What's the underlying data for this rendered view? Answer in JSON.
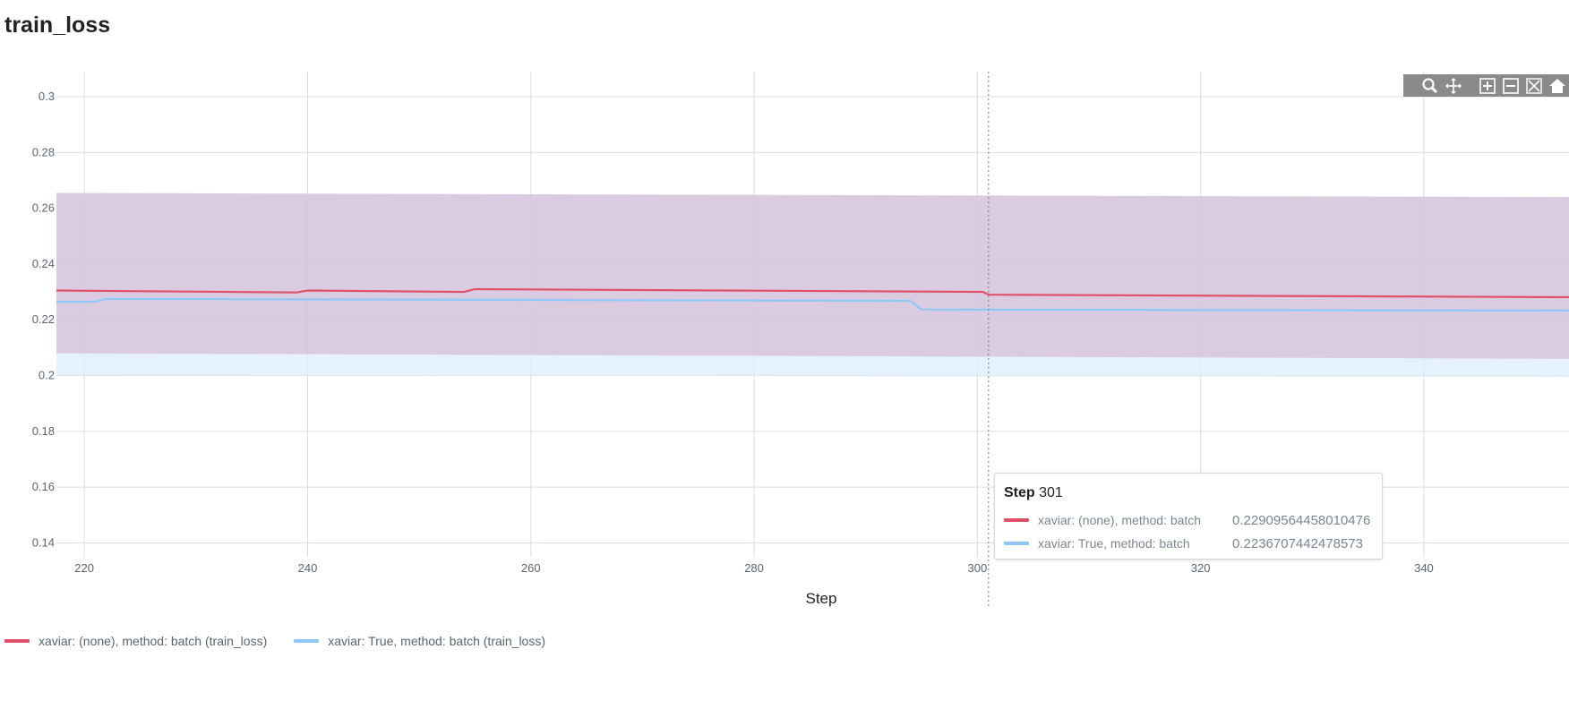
{
  "title": "train_loss",
  "colors": {
    "series_red": "#e05068",
    "series_blue": "#8ec8f8",
    "band_red": "#d8c0da",
    "band_blue": "#dceefb",
    "grid": "#d9dde3",
    "modebar_bg": "#8a8a8a"
  },
  "chart_data": {
    "type": "line",
    "xlabel": "Step",
    "ylabel": "",
    "xlim": [
      217.5,
      353
    ],
    "ylim": [
      0.135,
      0.309
    ],
    "xticks": [
      220,
      240,
      260,
      280,
      300,
      320,
      340
    ],
    "yticks": [
      0.14,
      0.16,
      0.18,
      0.2,
      0.22,
      0.24,
      0.26,
      0.28,
      0.3
    ],
    "ytick_labels": [
      "0.14",
      "0.16",
      "0.18",
      "0.2",
      "0.22",
      "0.24",
      "0.26",
      "0.28",
      "0.3"
    ],
    "grid": true,
    "legend_position": "bottom-left",
    "hover_step": 301,
    "series": [
      {
        "name": "xaviar: (none), method: batch (train_loss)",
        "short_name": "xaviar: (none), method: batch",
        "color": "#e05068",
        "x": [
          217.5,
          239,
          240,
          254,
          255,
          300.5,
          301,
          353
        ],
        "y": [
          0.2305,
          0.2298,
          0.2305,
          0.23,
          0.231,
          0.23,
          0.229,
          0.2281
        ],
        "band_upper": [
          [
            217.5,
            0.2655
          ],
          [
            353,
            0.264
          ]
        ],
        "band_lower": [
          [
            217.5,
            0.208
          ],
          [
            353,
            0.206
          ]
        ],
        "hover_value": "0.22909564458010476"
      },
      {
        "name": "xaviar: True, method: batch (train_loss)",
        "short_name": "xaviar: True, method: batch",
        "color": "#8ec8f8",
        "x": [
          217.5,
          221,
          222,
          294,
          295,
          353
        ],
        "y": [
          0.2265,
          0.2265,
          0.2275,
          0.2268,
          0.2237,
          0.2233
        ],
        "band_upper": [
          [
            217.5,
            0.265
          ],
          [
            353,
            0.264
          ]
        ],
        "band_lower": [
          [
            217.5,
            0.2
          ],
          [
            353,
            0.1995
          ]
        ],
        "hover_value": "0.2236707442478573"
      }
    ]
  },
  "tooltip": {
    "step_label": "Step",
    "step_value": "301",
    "rows": [
      {
        "name": "xaviar: (none), method: batch",
        "value": "0.22909564458010476"
      },
      {
        "name": "xaviar: True, method: batch",
        "value": "0.2236707442478573"
      }
    ]
  },
  "legend": [
    {
      "label": "xaviar: (none), method: batch (train_loss)"
    },
    {
      "label": "xaviar: True, method: batch (train_loss)"
    }
  ],
  "modebar": {
    "icons": [
      "zoom-icon",
      "pan-icon",
      "zoom-in-icon",
      "zoom-out-icon",
      "autoscale-icon",
      "reset-axes-icon"
    ]
  }
}
